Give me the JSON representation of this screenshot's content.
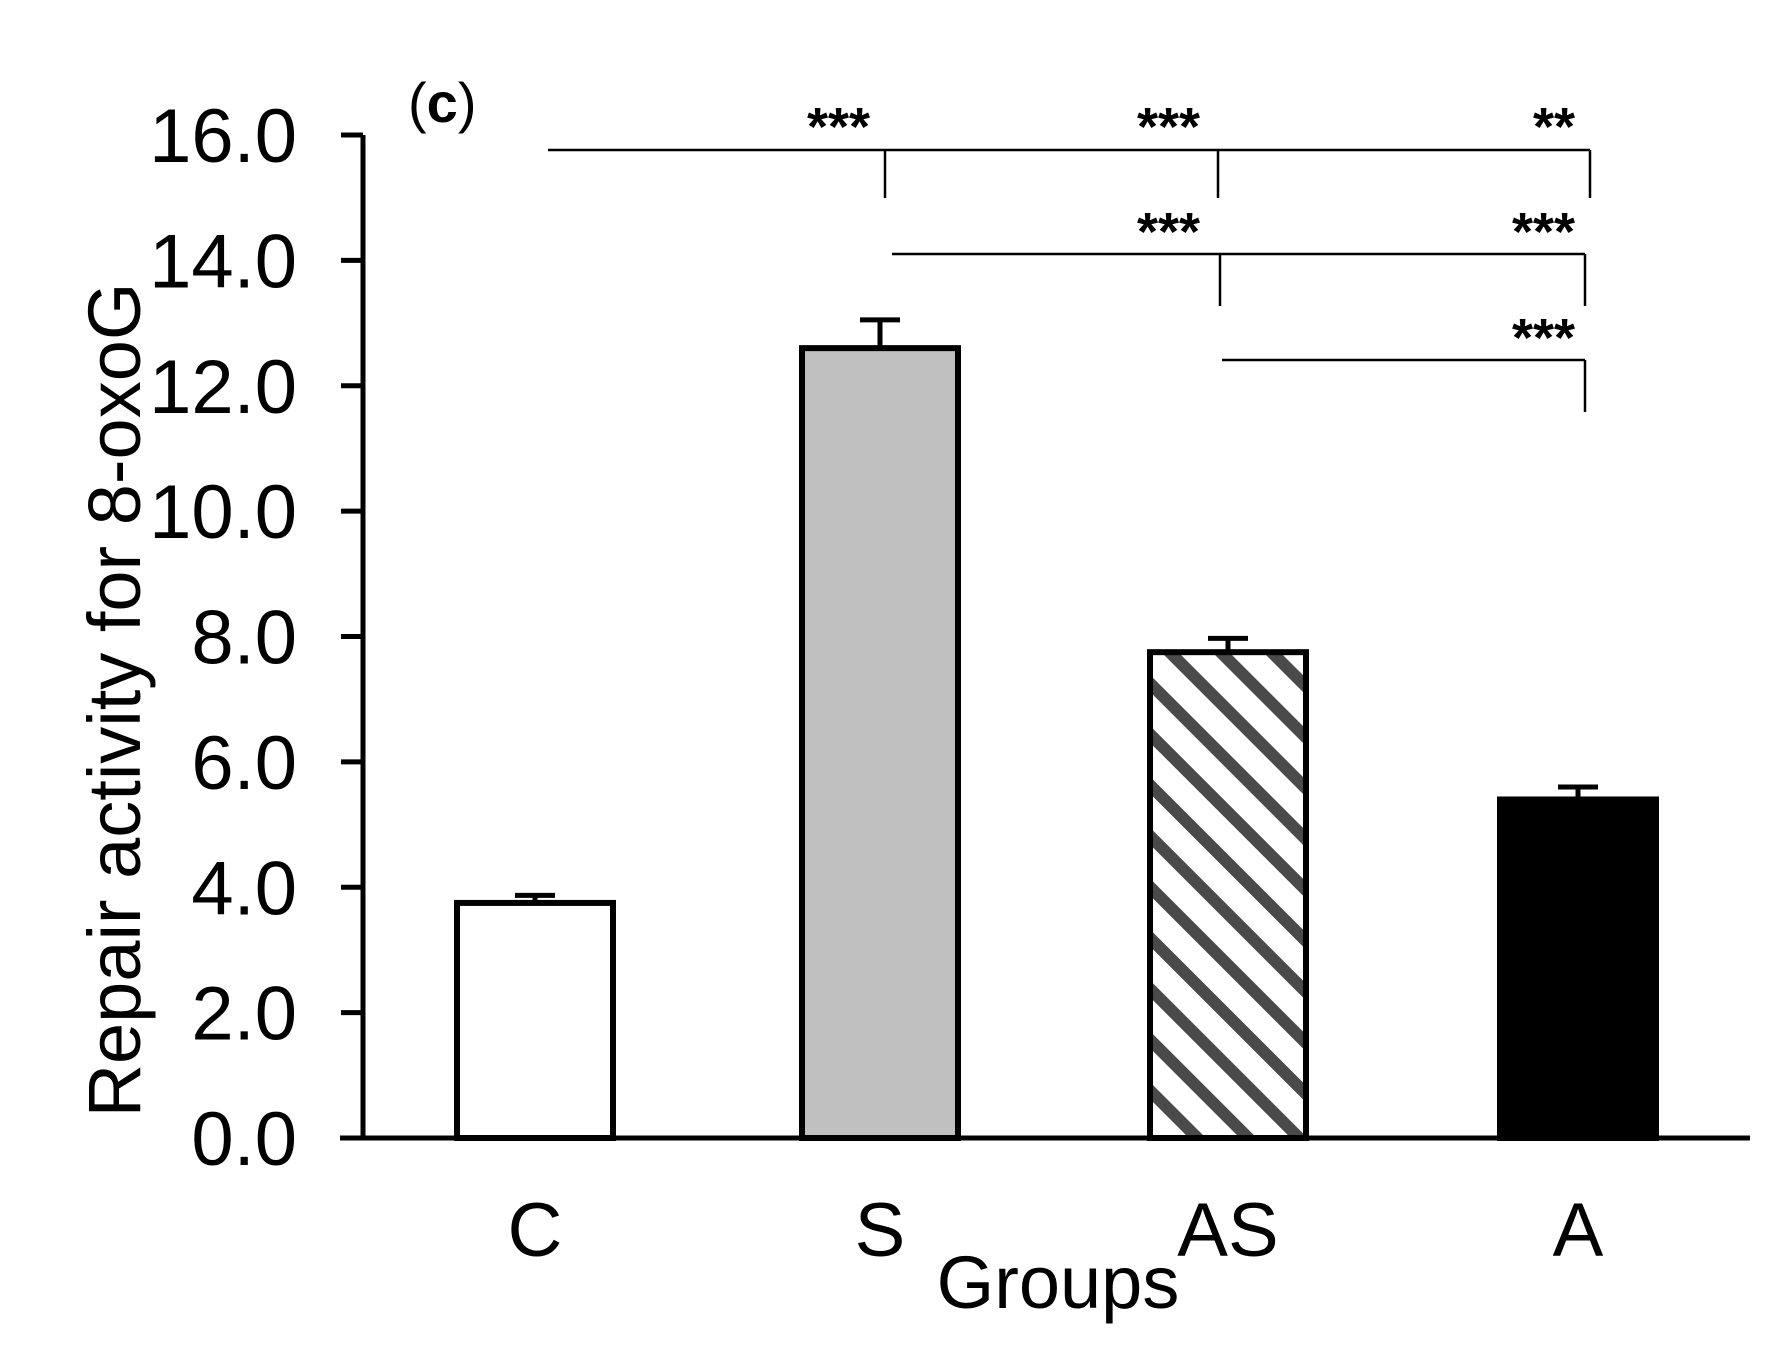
{
  "panel_label": {
    "open": "(",
    "letter": "c",
    "close": ")"
  },
  "colors": {
    "control": "#ffffff",
    "s": "#c0c0c0",
    "as_hatch": "#4a4a4a",
    "a": "#000000",
    "axis": "#000000"
  },
  "chart_data": {
    "type": "bar",
    "title": "",
    "xlabel": "Groups",
    "ylabel": "Repair activity for 8-oxoG",
    "categories": [
      "C",
      "S",
      "AS",
      "A"
    ],
    "values": [
      3.75,
      12.6,
      7.75,
      5.4
    ],
    "errors": [
      0.12,
      0.45,
      0.22,
      0.2
    ],
    "fills": [
      "white",
      "lightgray",
      "hatched",
      "black"
    ],
    "ylim": [
      0,
      16
    ],
    "yticks": [
      0,
      2,
      4,
      6,
      8,
      10,
      12,
      14,
      16
    ],
    "ytick_labels": [
      "0.0",
      "2.0",
      "4.0",
      "6.0",
      "8.0",
      "10.0",
      "12.0",
      "14.0",
      "16.0"
    ],
    "significance": [
      {
        "from": "C",
        "to": "S",
        "label": "***"
      },
      {
        "from": "C",
        "to": "AS",
        "label": "***"
      },
      {
        "from": "C",
        "to": "A",
        "label": "**"
      },
      {
        "from": "S",
        "to": "AS",
        "label": "***"
      },
      {
        "from": "S",
        "to": "A",
        "label": "***"
      },
      {
        "from": "AS",
        "to": "A",
        "label": "***"
      }
    ]
  }
}
